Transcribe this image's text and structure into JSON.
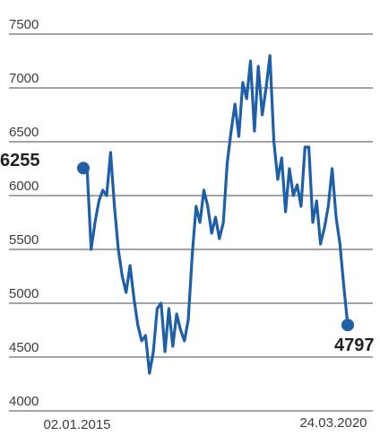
{
  "chart_data": {
    "type": "line",
    "title": "",
    "xlabel": "",
    "ylabel": "",
    "ylim": [
      4000,
      7500
    ],
    "y_ticks": [
      7500,
      7000,
      6500,
      6000,
      5500,
      5000,
      4500,
      4000
    ],
    "x_tick_labels": [
      "02.01.2015",
      "24.03.2020"
    ],
    "grid": true,
    "colors": {
      "line": "#1e5fa8",
      "grid": "#4a4a4a"
    },
    "start": {
      "date": "02.01.2015",
      "value": 6255,
      "label": "6255"
    },
    "end": {
      "date": "24.03.2020",
      "value": 4797,
      "label": "4797"
    },
    "series": [
      {
        "x_range": [
          "02.01.2015",
          "24.03.2020"
        ],
        "values": [
          6255,
          6230,
          5500,
          5750,
          5950,
          6050,
          6000,
          6400,
          5900,
          5500,
          5250,
          5100,
          5350,
          5050,
          4800,
          4650,
          4700,
          4350,
          4550,
          4950,
          5000,
          4550,
          4950,
          4600,
          4900,
          4750,
          4650,
          4850,
          5450,
          5900,
          5750,
          6050,
          5900,
          5650,
          5800,
          5600,
          5750,
          6300,
          6600,
          6850,
          6550,
          7050,
          6900,
          7250,
          6600,
          7200,
          6750,
          7000,
          7300,
          6500,
          6150,
          6350,
          5850,
          6250,
          6000,
          6100,
          5900,
          6450,
          6450,
          5750,
          5950,
          5550,
          5700,
          5900,
          6250,
          5800,
          5550,
          5150,
          4797
        ]
      }
    ]
  }
}
